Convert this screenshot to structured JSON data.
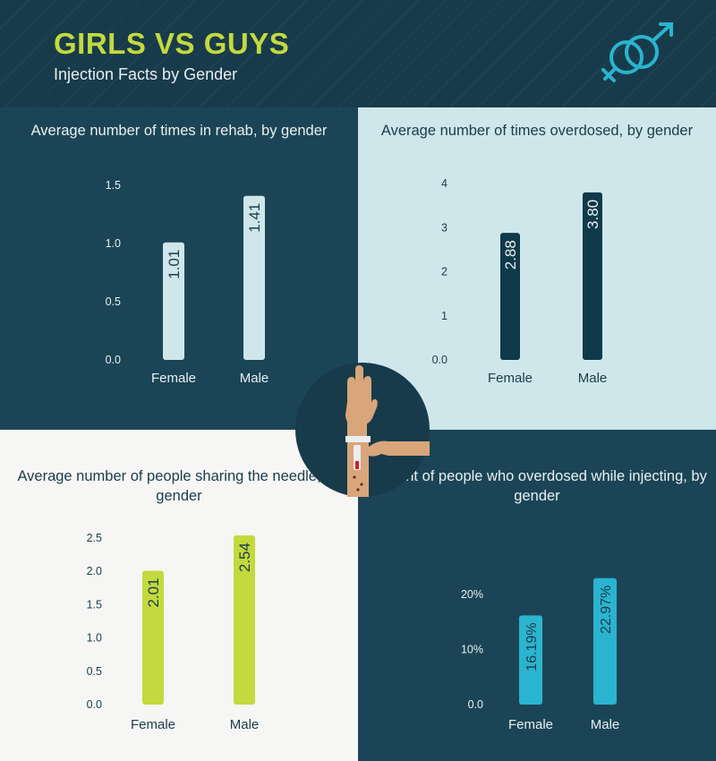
{
  "header": {
    "title": "GIRLS VS GUYS",
    "subtitle": "Injection Facts by Gender",
    "icon": "gender-symbols-icon"
  },
  "colors": {
    "title": "#c4d93d",
    "panel_dark": "#1b4556",
    "panel_light_blue": "#cfe7ea",
    "panel_light_gray": "#f6f6f4",
    "bar_pale": "#cfe7ea",
    "bar_dark": "#0f3a4a",
    "bar_lime": "#c4d93d",
    "bar_cyan": "#2ab4cf"
  },
  "center_illustration": "arm-injection-icon",
  "chart_data": [
    {
      "type": "bar",
      "title": "Average number of times in rehab, by gender",
      "categories": [
        "Female",
        "Male"
      ],
      "values": [
        1.01,
        1.41
      ],
      "value_labels": [
        "1.01",
        "1.41"
      ],
      "yticks": [
        "0.0",
        "0.5",
        "1.0",
        "1.5"
      ],
      "ylim": [
        0,
        1.5
      ],
      "xlabel": "",
      "ylabel": "",
      "grid": false
    },
    {
      "type": "bar",
      "title": "Average number of times overdosed, by gender",
      "categories": [
        "Female",
        "Male"
      ],
      "values": [
        2.88,
        3.8
      ],
      "value_labels": [
        "2.88",
        "3.80"
      ],
      "yticks": [
        "0.0",
        "1",
        "2",
        "3",
        "4"
      ],
      "ylim": [
        0,
        4
      ],
      "xlabel": "",
      "ylabel": "",
      "grid": false
    },
    {
      "type": "bar",
      "title": "Average number of people sharing the needle, by gender",
      "categories": [
        "Female",
        "Male"
      ],
      "values": [
        2.01,
        2.54
      ],
      "value_labels": [
        "2.01",
        "2.54"
      ],
      "yticks": [
        "0.0",
        "0.5",
        "1.0",
        "1.5",
        "2.0",
        "2.5"
      ],
      "ylim": [
        0,
        2.5
      ],
      "xlabel": "",
      "ylabel": "",
      "grid": false
    },
    {
      "type": "bar",
      "title": "Percent of people who overdosed while injecting, by gender",
      "categories": [
        "Female",
        "Male"
      ],
      "values": [
        16.19,
        22.97
      ],
      "value_labels": [
        "16.19%",
        "22.97%"
      ],
      "yticks": [
        "0.0",
        "10%",
        "20%"
      ],
      "ylim": [
        0,
        20
      ],
      "xlabel": "",
      "ylabel": "",
      "grid": false
    }
  ]
}
